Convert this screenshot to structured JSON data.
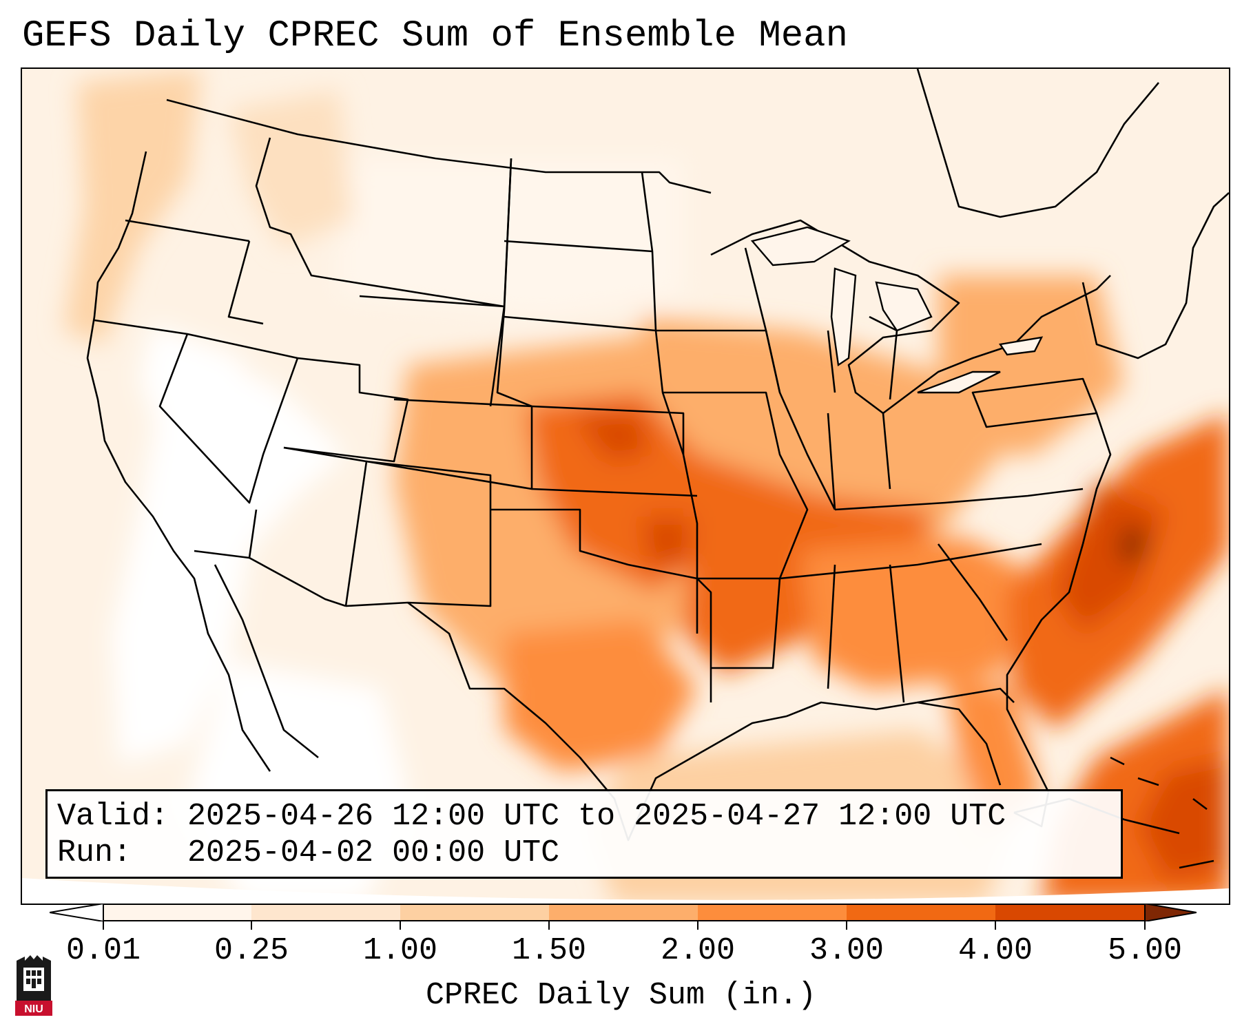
{
  "title": "GEFS Daily CPREC Sum of Ensemble Mean",
  "info": {
    "valid_line": "Valid: 2025-04-26 12:00 UTC to 2025-04-27 12:00 UTC",
    "run_line": "Run:   2025-04-02 00:00 UTC"
  },
  "colorbar": {
    "label": "CPREC Daily Sum (in.)",
    "ticks": [
      "0.01",
      "0.25",
      "1.00",
      "1.50",
      "2.00",
      "3.00",
      "4.00",
      "5.00"
    ],
    "colors": [
      "#fff5eb",
      "#fee6ce",
      "#fdd0a2",
      "#fdae6b",
      "#fd8d3c",
      "#f16913",
      "#d94801",
      "#8c2d04"
    ],
    "under_color": "#ffffff",
    "over_color": "#7f2704"
  },
  "logo": {
    "text": "NIU",
    "colors": [
      "#1a1a1a",
      "#c8102e"
    ]
  },
  "map": {
    "projection": "Lambert Conformal (CONUS)",
    "features": [
      "US state boundaries",
      "Coastlines",
      "Great Lakes"
    ],
    "precip_regions": [
      {
        "region": "Kansas / Oklahoma",
        "level": "2.00-4.00"
      },
      {
        "region": "Arkansas / Missouri",
        "level": "2.00-3.00"
      },
      {
        "region": "Tennessee / Mississippi",
        "level": "2.00-3.00"
      },
      {
        "region": "Atlantic off Carolinas",
        "level": "4.00-5.00"
      },
      {
        "region": "Caribbean / Bahamas",
        "level": "3.00-5.00"
      },
      {
        "region": "Pacific Northwest",
        "level": "0.25-1.00"
      },
      {
        "region": "Southwest / Nevada",
        "level": "0.00-0.01"
      }
    ]
  }
}
